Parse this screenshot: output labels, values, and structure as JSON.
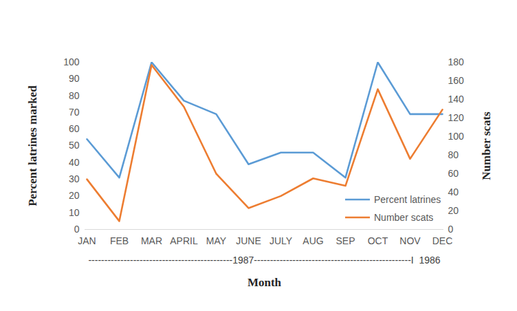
{
  "chart_data": {
    "type": "line",
    "categories": [
      "JAN",
      "FEB",
      "MAR",
      "APRIL",
      "MAY",
      "JUNE",
      "JULY",
      "AUG",
      "SEP",
      "OCT",
      "NOV",
      "DEC"
    ],
    "x_label": "Month",
    "y_label": "Percent latrines marked",
    "y2_label": "Number scats",
    "annotations": [
      "---------------------------------------------1987-------------------------------------------------I  1986"
    ],
    "series": [
      {
        "name": "Percent latrines",
        "color": "#5b9bd5",
        "values": [
          54,
          31,
          100,
          77,
          69,
          39,
          46,
          46,
          31,
          100,
          69,
          69
        ]
      },
      {
        "name": "Number scats",
        "color": "#ed7d31",
        "axis": "y2",
        "values": [
          54,
          9,
          177,
          132,
          60,
          23,
          36,
          55,
          47,
          151,
          76,
          129
        ]
      }
    ],
    "ylim": [
      0,
      100
    ],
    "yticks": [
      0,
      10,
      20,
      30,
      40,
      50,
      60,
      70,
      80,
      90,
      100
    ],
    "y2lim": [
      0,
      180
    ],
    "y2ticks": [
      0,
      20,
      40,
      60,
      80,
      100,
      120,
      140,
      160,
      180
    ],
    "grid": false,
    "legend": "lower right"
  }
}
